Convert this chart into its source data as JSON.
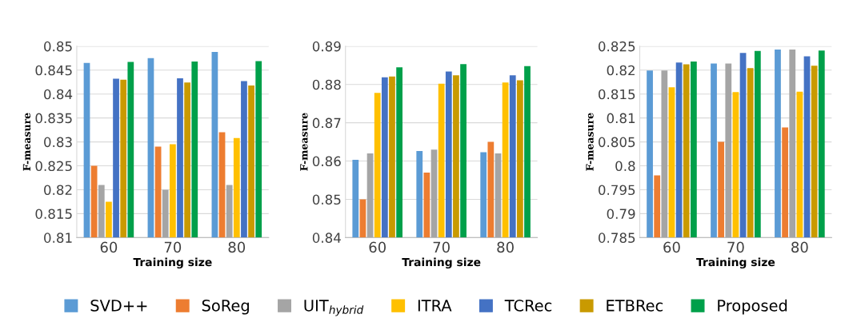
{
  "chart_data": [
    {
      "type": "bar",
      "xlabel": "Training size",
      "ylabel": "F-measure",
      "categories": [
        "60",
        "70",
        "80"
      ],
      "ylim": [
        0.81,
        0.85
      ],
      "yticks": [
        0.81,
        0.815,
        0.82,
        0.825,
        0.83,
        0.835,
        0.84,
        0.845,
        0.85
      ],
      "grid": "y",
      "legend": "bottom",
      "series": [
        {
          "name": "SVD++",
          "color": "#5b9bd5",
          "values": [
            0.8465,
            0.8475,
            0.8488
          ]
        },
        {
          "name": "SoReg",
          "color": "#ed7d31",
          "values": [
            0.825,
            0.829,
            0.832
          ]
        },
        {
          "name": "UIT$_{hybrid}$",
          "color": "#a5a5a5",
          "values": [
            0.821,
            0.82,
            0.821
          ]
        },
        {
          "name": "ITRA",
          "color": "#ffc000",
          "values": [
            0.8175,
            0.8295,
            0.8308
          ]
        },
        {
          "name": "TCRec",
          "color": "#4472c4",
          "values": [
            0.8432,
            0.8433,
            0.8427
          ]
        },
        {
          "name": "ETBRec",
          "color": "#c99a00",
          "values": [
            0.843,
            0.8424,
            0.8418
          ]
        },
        {
          "name": "Proposed",
          "color": "#00a04a",
          "values": [
            0.8467,
            0.8468,
            0.8469
          ]
        }
      ]
    },
    {
      "type": "bar",
      "xlabel": "Training size",
      "ylabel": "F-measure",
      "categories": [
        "60",
        "70",
        "80"
      ],
      "ylim": [
        0.84,
        0.89
      ],
      "yticks": [
        0.84,
        0.85,
        0.86,
        0.87,
        0.88,
        0.89
      ],
      "grid": "y",
      "legend": "bottom",
      "series": [
        {
          "name": "SVD++",
          "color": "#5b9bd5",
          "values": [
            0.8603,
            0.8626,
            0.8623
          ]
        },
        {
          "name": "SoReg",
          "color": "#ed7d31",
          "values": [
            0.85,
            0.857,
            0.865
          ]
        },
        {
          "name": "UIT$_{hybrid}$",
          "color": "#a5a5a5",
          "values": [
            0.862,
            0.863,
            0.862
          ]
        },
        {
          "name": "ITRA",
          "color": "#ffc000",
          "values": [
            0.8778,
            0.8802,
            0.8805
          ]
        },
        {
          "name": "TCRec",
          "color": "#4472c4",
          "values": [
            0.8819,
            0.8834,
            0.8824
          ]
        },
        {
          "name": "ETBRec",
          "color": "#c99a00",
          "values": [
            0.8821,
            0.8824,
            0.8811
          ]
        },
        {
          "name": "Proposed",
          "color": "#00a04a",
          "values": [
            0.8845,
            0.8853,
            0.8848
          ]
        }
      ]
    },
    {
      "type": "bar",
      "xlabel": "Training size",
      "ylabel": "F-measure",
      "categories": [
        "60",
        "70",
        "80"
      ],
      "ylim": [
        0.785,
        0.825
      ],
      "yticks": [
        0.785,
        0.79,
        0.795,
        0.8,
        0.805,
        0.81,
        0.815,
        0.82,
        0.825
      ],
      "grid": "y",
      "legend": "bottom",
      "series": [
        {
          "name": "SVD++",
          "color": "#5b9bd5",
          "values": [
            0.8199,
            0.8214,
            0.8243
          ]
        },
        {
          "name": "SoReg",
          "color": "#ed7d31",
          "values": [
            0.798,
            0.805,
            0.808
          ]
        },
        {
          "name": "UIT$_{hybrid}$",
          "color": "#a5a5a5",
          "values": [
            0.8199,
            0.8214,
            0.8243
          ]
        },
        {
          "name": "ITRA",
          "color": "#ffc000",
          "values": [
            0.8164,
            0.8154,
            0.8155
          ]
        },
        {
          "name": "TCRec",
          "color": "#4472c4",
          "values": [
            0.8216,
            0.8236,
            0.8229
          ]
        },
        {
          "name": "ETBRec",
          "color": "#c99a00",
          "values": [
            0.8212,
            0.8204,
            0.8209
          ]
        },
        {
          "name": "Proposed",
          "color": "#00a04a",
          "values": [
            0.8218,
            0.824,
            0.8241
          ]
        }
      ]
    }
  ]
}
